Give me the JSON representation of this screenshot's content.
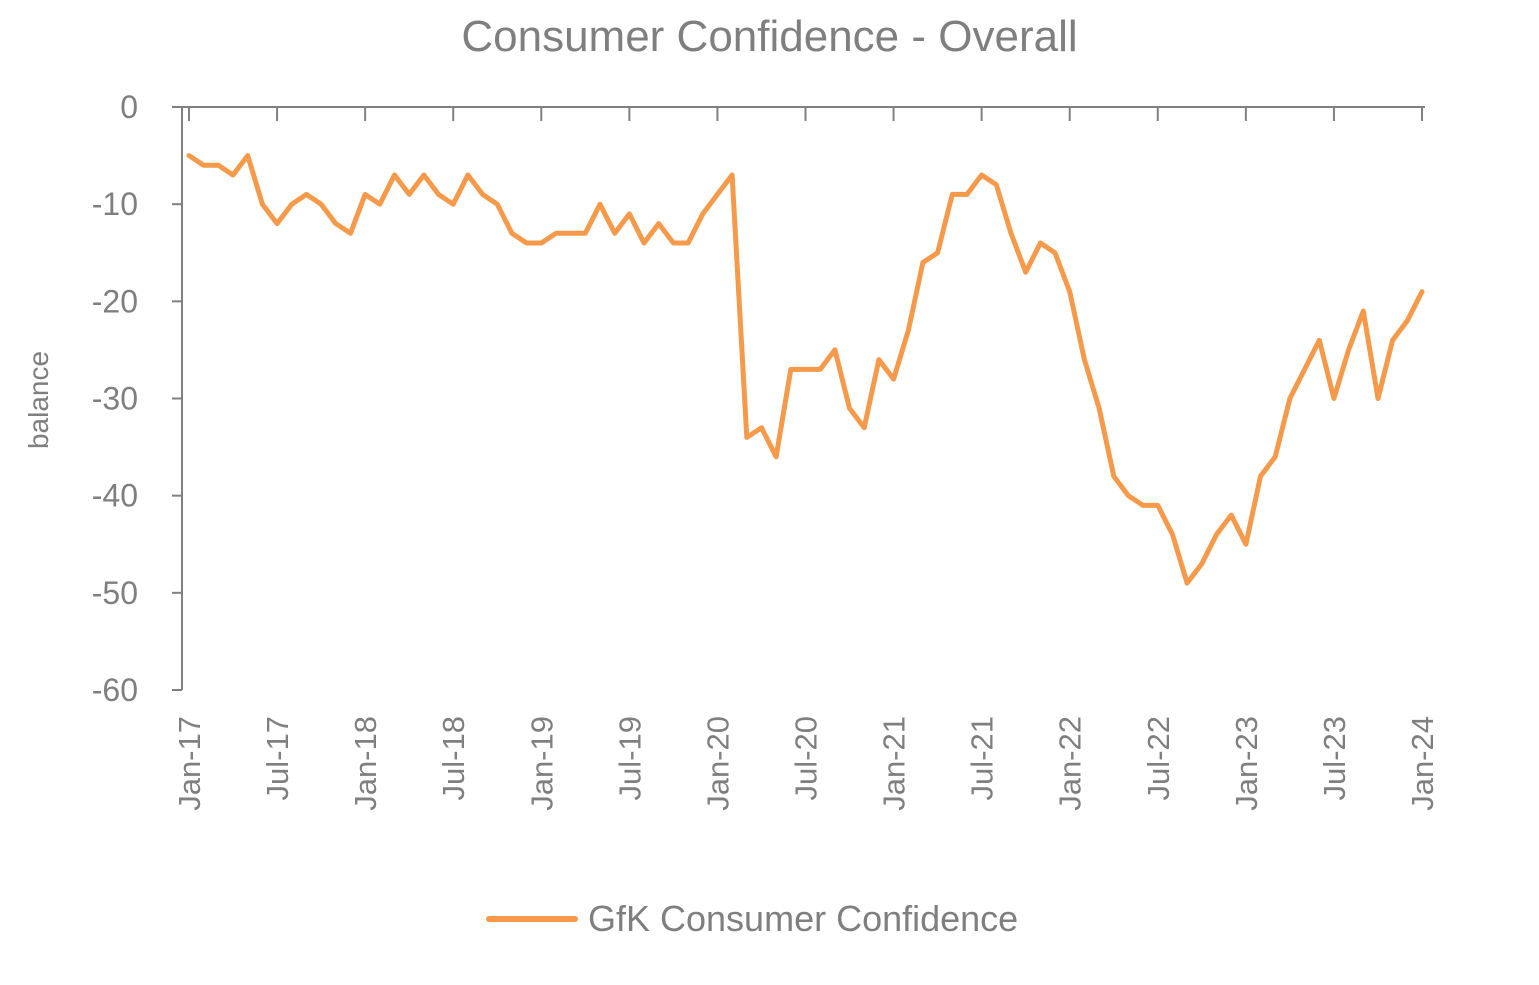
{
  "chart_data": {
    "type": "line",
    "title": "Consumer Confidence - Overall",
    "xlabel": "",
    "ylabel": "balance",
    "ylim": [
      -60,
      0
    ],
    "yticks": [
      0,
      -10,
      -20,
      -30,
      -40,
      -50,
      -60
    ],
    "x_tick_labels": [
      "Jan-17",
      "Jul-17",
      "Jan-18",
      "Jul-18",
      "Jan-19",
      "Jul-19",
      "Jan-20",
      "Jul-20",
      "Jan-21",
      "Jul-21",
      "Jan-22",
      "Jul-22",
      "Jan-23",
      "Jul-23",
      "Jan-24"
    ],
    "x_start": "Jan-17",
    "x_end": "Jan-24",
    "grid": false,
    "legend_position": "bottom",
    "color": "#f59a4a",
    "series": [
      {
        "name": "GfK Consumer Confidence",
        "values": [
          -5,
          -6,
          -6,
          -7,
          -5,
          -10,
          -12,
          -10,
          -9,
          -10,
          -12,
          -13,
          -9,
          -10,
          -7,
          -9,
          -7,
          -9,
          -10,
          -7,
          -9,
          -10,
          -13,
          -14,
          -14,
          -13,
          -13,
          -13,
          -10,
          -13,
          -11,
          -14,
          -12,
          -14,
          -14,
          -11,
          -9,
          -7,
          -34,
          -33,
          -36,
          -27,
          -27,
          -27,
          -25,
          -31,
          -33,
          -26,
          -28,
          -23,
          -16,
          -15,
          -9,
          -9,
          -7,
          -8,
          -13,
          -17,
          -14,
          -15,
          -19,
          -26,
          -31,
          -38,
          -40,
          -41,
          -41,
          -44,
          -49,
          -47,
          -44,
          -42,
          -45,
          -38,
          -36,
          -30,
          -27,
          -24,
          -30,
          -25,
          -21,
          -30,
          -24,
          -22,
          -19
        ]
      }
    ]
  }
}
